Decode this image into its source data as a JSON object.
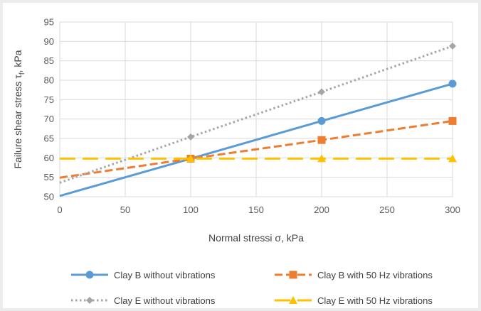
{
  "chart_data": {
    "type": "line",
    "xlabel": "Normal stressi σ, kPa",
    "ylabel": "Failure shear stress τ",
    "ylabel_sub": "f",
    "ylabel_unit": ", kPa",
    "xlim": [
      0,
      300
    ],
    "ylim": [
      50,
      95
    ],
    "xticks": [
      0,
      50,
      100,
      150,
      200,
      250,
      300
    ],
    "yticks": [
      50,
      55,
      60,
      65,
      70,
      75,
      80,
      85,
      90,
      95
    ],
    "grid": true,
    "legend_position": "bottom",
    "series": [
      {
        "name": "Clay B without vibrations",
        "color": "#5b9bd5",
        "style": "solid",
        "marker": "circle",
        "points": [
          {
            "x": 0,
            "y": 50.2
          },
          {
            "x": 100,
            "y": 59.8
          },
          {
            "x": 200,
            "y": 69.5
          },
          {
            "x": 300,
            "y": 79.1
          }
        ]
      },
      {
        "name": "Clay B with 50 Hz vibrations",
        "color": "#ed7d31",
        "style": "dashed",
        "marker": "square",
        "points": [
          {
            "x": 0,
            "y": 54.9
          },
          {
            "x": 100,
            "y": 59.8
          },
          {
            "x": 200,
            "y": 64.6
          },
          {
            "x": 300,
            "y": 69.5
          }
        ]
      },
      {
        "name": "Clay E without vibrations",
        "color": "#a5a5a5",
        "style": "dotted",
        "marker": "diamond",
        "points": [
          {
            "x": 0,
            "y": 53.6
          },
          {
            "x": 100,
            "y": 65.4
          },
          {
            "x": 200,
            "y": 77.0
          },
          {
            "x": 300,
            "y": 88.8
          }
        ]
      },
      {
        "name": "Clay E with 50 Hz vibrations",
        "color": "#ffc000",
        "style": "longdash",
        "marker": "triangle",
        "points": [
          {
            "x": 0,
            "y": 59.8
          },
          {
            "x": 100,
            "y": 59.8
          },
          {
            "x": 200,
            "y": 59.8
          },
          {
            "x": 300,
            "y": 59.8
          }
        ]
      }
    ]
  }
}
